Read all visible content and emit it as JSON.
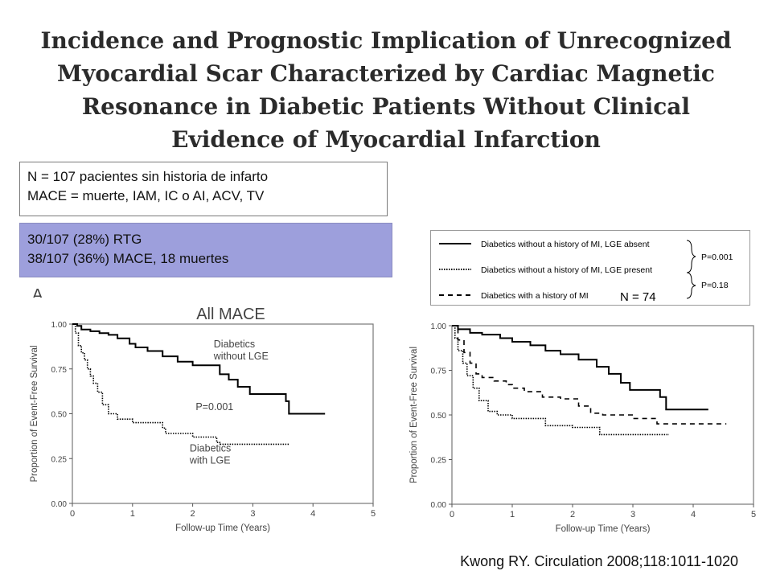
{
  "slide": {
    "title_lines": [
      "Incidence and Prognostic Implication of Unrecognized",
      "Myocardial Scar Characterized by Cardiac Magnetic",
      "Resonance in Diabetic Patients Without Clinical",
      "Evidence of Myocardial Infarction"
    ],
    "info_lines": [
      "N = 107 pacientes sin historia de infarto",
      "MACE = muerte, IAM, IC o AI, ACV, TV"
    ],
    "stats_lines": [
      "30/107 (28%) RTG",
      "38/107 (36%) MACE, 18 muertes"
    ],
    "panel_letter": "A",
    "citation": "Kwong RY. Circulation 2008;118:1011-1020",
    "colors": {
      "stats_box_bg": "#9d9fdc",
      "line": "#000000"
    }
  },
  "legend": {
    "entries": [
      {
        "label": "Diabetics without a history of MI, LGE absent",
        "style": "solid"
      },
      {
        "label": "Diabetics without a history of MI, LGE present",
        "style": "dotted"
      },
      {
        "label": "Diabetics with a history of MI",
        "style": "dashed"
      }
    ],
    "p_values": [
      "P=0.001",
      "P=0.18"
    ],
    "n_label": "N = 74"
  },
  "chart_data": [
    {
      "type": "line",
      "title": "All MACE",
      "xlabel": "Follow-up Time (Years)",
      "ylabel": "Proportion of Event-Free Survival",
      "xlim": [
        0,
        5
      ],
      "ylim": [
        0,
        1
      ],
      "xticks": [
        "0",
        "1",
        "2",
        "3",
        "4",
        "5"
      ],
      "yticks": [
        "0.00",
        "0.25",
        "0.50",
        "0.75",
        "1.00"
      ],
      "annotations": [
        {
          "text": "Diabetics without LGE",
          "lines": [
            "Diabetics",
            "without LGE"
          ],
          "at": [
            2.35,
            0.87
          ]
        },
        {
          "text": "P=0.001",
          "lines": [
            "P=0.001"
          ],
          "at": [
            2.05,
            0.52
          ]
        },
        {
          "text": "Diabetics with LGE",
          "lines": [
            "Diabetics",
            "with LGE"
          ],
          "at": [
            1.95,
            0.29
          ]
        }
      ],
      "series": [
        {
          "style": "solid",
          "points": [
            [
              0,
              1.0
            ],
            [
              0.08,
              0.99
            ],
            [
              0.15,
              0.97
            ],
            [
              0.3,
              0.96
            ],
            [
              0.45,
              0.95
            ],
            [
              0.6,
              0.94
            ],
            [
              0.75,
              0.92
            ],
            [
              0.95,
              0.89
            ],
            [
              1.05,
              0.87
            ],
            [
              1.25,
              0.85
            ],
            [
              1.5,
              0.82
            ],
            [
              1.75,
              0.79
            ],
            [
              2.0,
              0.77
            ],
            [
              2.45,
              0.72
            ],
            [
              2.6,
              0.69
            ],
            [
              2.75,
              0.65
            ],
            [
              2.95,
              0.61
            ],
            [
              3.55,
              0.57
            ],
            [
              3.6,
              0.5
            ],
            [
              4.2,
              0.5
            ]
          ]
        },
        {
          "style": "dotted",
          "points": [
            [
              0,
              1.0
            ],
            [
              0.05,
              0.95
            ],
            [
              0.1,
              0.88
            ],
            [
              0.15,
              0.84
            ],
            [
              0.2,
              0.8
            ],
            [
              0.25,
              0.75
            ],
            [
              0.3,
              0.71
            ],
            [
              0.35,
              0.67
            ],
            [
              0.42,
              0.62
            ],
            [
              0.5,
              0.55
            ],
            [
              0.6,
              0.5
            ],
            [
              0.75,
              0.47
            ],
            [
              1.0,
              0.45
            ],
            [
              1.5,
              0.42
            ],
            [
              1.55,
              0.39
            ],
            [
              2.0,
              0.37
            ],
            [
              2.4,
              0.34
            ],
            [
              2.45,
              0.33
            ],
            [
              3.6,
              0.33
            ]
          ]
        }
      ]
    },
    {
      "type": "line",
      "title": "",
      "xlabel": "Follow-up Time (Years)",
      "ylabel": "Proportion of Event-Free Survival",
      "xlim": [
        0,
        5
      ],
      "ylim": [
        0,
        1
      ],
      "xticks": [
        "0",
        "1",
        "2",
        "3",
        "4",
        "5"
      ],
      "yticks": [
        "0.00",
        "0.25",
        "0.50",
        "0.75",
        "1.00"
      ],
      "series": [
        {
          "style": "solid",
          "points": [
            [
              0,
              1.0
            ],
            [
              0.1,
              0.98
            ],
            [
              0.3,
              0.96
            ],
            [
              0.5,
              0.95
            ],
            [
              0.8,
              0.93
            ],
            [
              1.0,
              0.91
            ],
            [
              1.3,
              0.89
            ],
            [
              1.55,
              0.86
            ],
            [
              1.8,
              0.84
            ],
            [
              2.1,
              0.81
            ],
            [
              2.4,
              0.77
            ],
            [
              2.6,
              0.73
            ],
            [
              2.8,
              0.68
            ],
            [
              2.95,
              0.64
            ],
            [
              3.3,
              0.64
            ],
            [
              3.45,
              0.6
            ],
            [
              3.55,
              0.53
            ],
            [
              4.25,
              0.53
            ]
          ]
        },
        {
          "style": "dotted",
          "points": [
            [
              0,
              1.0
            ],
            [
              0.05,
              0.93
            ],
            [
              0.1,
              0.86
            ],
            [
              0.18,
              0.79
            ],
            [
              0.25,
              0.72
            ],
            [
              0.35,
              0.65
            ],
            [
              0.45,
              0.58
            ],
            [
              0.6,
              0.52
            ],
            [
              0.75,
              0.5
            ],
            [
              1.0,
              0.48
            ],
            [
              1.5,
              0.48
            ],
            [
              1.55,
              0.44
            ],
            [
              2.0,
              0.43
            ],
            [
              2.4,
              0.43
            ],
            [
              2.45,
              0.39
            ],
            [
              3.6,
              0.39
            ]
          ]
        },
        {
          "style": "dashed",
          "points": [
            [
              0,
              1.0
            ],
            [
              0.1,
              0.92
            ],
            [
              0.2,
              0.85
            ],
            [
              0.3,
              0.79
            ],
            [
              0.4,
              0.73
            ],
            [
              0.5,
              0.71
            ],
            [
              0.7,
              0.69
            ],
            [
              0.9,
              0.67
            ],
            [
              1.0,
              0.65
            ],
            [
              1.2,
              0.63
            ],
            [
              1.5,
              0.6
            ],
            [
              1.8,
              0.59
            ],
            [
              2.1,
              0.55
            ],
            [
              2.3,
              0.51
            ],
            [
              2.5,
              0.5
            ],
            [
              3.0,
              0.48
            ],
            [
              3.3,
              0.48
            ],
            [
              3.4,
              0.45
            ],
            [
              4.55,
              0.45
            ]
          ]
        }
      ]
    }
  ]
}
